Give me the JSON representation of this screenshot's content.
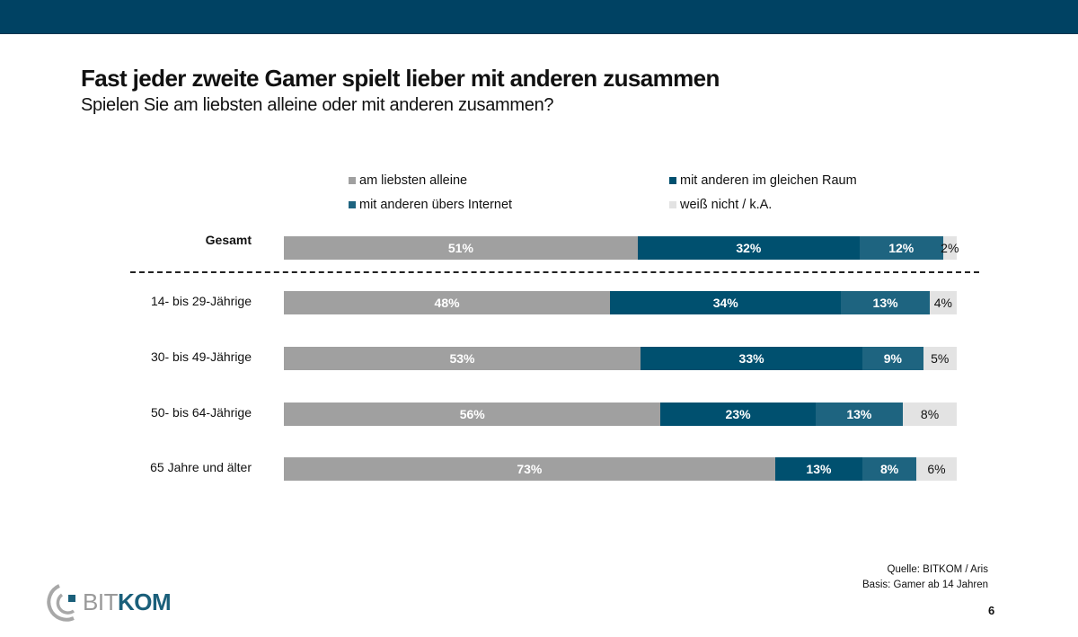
{
  "header": {
    "title": "Fast jeder zweite Gamer spielt lieber mit anderen zusammen",
    "subtitle": "Spielen Sie am liebsten alleine oder mit anderen zusammen?"
  },
  "chart_data": {
    "type": "bar",
    "orientation": "horizontal",
    "stacked": true,
    "title": "Fast jeder zweite Gamer spielt lieber mit anderen zusammen",
    "subtitle": "Spielen Sie am liebsten alleine oder mit anderen zusammen?",
    "categories": [
      "Gesamt",
      "14- bis 29-Jährige",
      "30- bis 49-Jährige",
      "50- bis 64-Jährige",
      "65 Jahre und älter"
    ],
    "series": [
      {
        "name": "am liebsten alleine",
        "color": "#a0a0a0",
        "values": [
          51,
          48,
          53,
          56,
          73
        ]
      },
      {
        "name": "mit anderen im gleichen Raum",
        "color": "#00506f",
        "values": [
          32,
          34,
          33,
          23,
          13
        ]
      },
      {
        "name": "mit anderen übers Internet",
        "color": "#1e6480",
        "values": [
          12,
          13,
          9,
          13,
          8
        ]
      },
      {
        "name": "weiß nicht / k.A.",
        "color": "#e3e3e3",
        "values": [
          2,
          4,
          5,
          8,
          6
        ]
      }
    ],
    "value_suffix": "%",
    "xlim": [
      0,
      100
    ],
    "legend_position": "top",
    "grid": false,
    "separator_after_category": "Gesamt"
  },
  "footer": {
    "source": "Quelle: BITKOM / Aris",
    "basis": "Basis: Gamer ab 14 Jahren",
    "page_number": "6",
    "logo_part1": "BIT",
    "logo_part2": "KOM"
  },
  "colors": {
    "brand": "#004263",
    "logo_blue": "#1a5f7a",
    "logo_gray": "#9a9a9a"
  }
}
